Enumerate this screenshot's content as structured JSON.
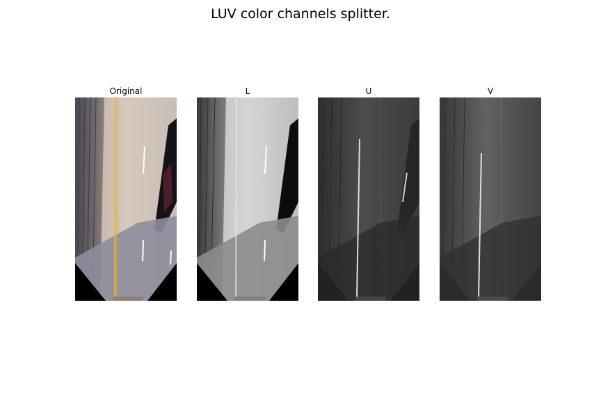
{
  "figure": {
    "title": "LUV color channels splitter."
  },
  "panels": [
    {
      "title": "Original",
      "kind": "color",
      "lane_line_color": "#e6b83a",
      "road_color": "#c9bcb0",
      "shadow_color": "#8f8d9c"
    },
    {
      "title": "L",
      "kind": "grayscale"
    },
    {
      "title": "U",
      "kind": "grayscale"
    },
    {
      "title": "V",
      "kind": "grayscale"
    }
  ]
}
